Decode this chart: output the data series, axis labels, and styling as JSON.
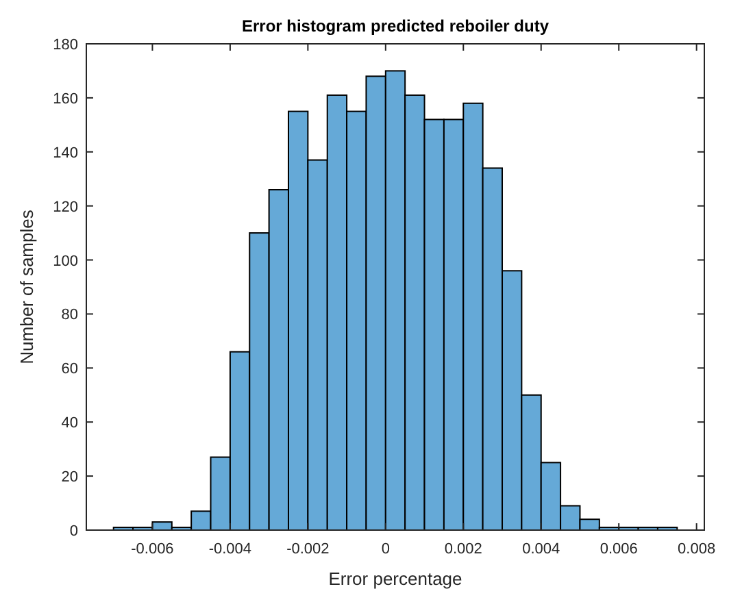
{
  "chart_data": {
    "type": "histogram",
    "title": "Error histogram predicted reboiler duty",
    "xlabel": "Error percentage",
    "ylabel": "Number of samples",
    "bins": [
      -0.007,
      -0.0065,
      -0.006,
      -0.0055,
      -0.005,
      -0.0045,
      -0.004,
      -0.0035,
      -0.003,
      -0.0025,
      -0.002,
      -0.0015,
      -0.001,
      -0.0005,
      0,
      0.0005,
      0.001,
      0.0015,
      0.002,
      0.0025,
      0.003,
      0.0035,
      0.004,
      0.0045,
      0.005,
      0.0055,
      0.006,
      0.0065,
      0.007,
      0.0075
    ],
    "values": [
      1,
      1,
      3,
      1,
      7,
      27,
      66,
      110,
      126,
      155,
      137,
      161,
      155,
      168,
      170,
      161,
      152,
      152,
      158,
      134,
      96,
      50,
      25,
      9,
      4,
      1,
      1,
      1,
      1
    ],
    "color": "#65a9d7",
    "xlim": [
      -0.0077,
      0.0082
    ],
    "xticks": [
      -0.006,
      -0.004,
      -0.002,
      0,
      0.002,
      0.004,
      0.006,
      0.008
    ],
    "ylim": [
      0,
      180
    ],
    "yticks": [
      0,
      20,
      40,
      60,
      80,
      100,
      120,
      140,
      160,
      180
    ],
    "grid": false
  }
}
